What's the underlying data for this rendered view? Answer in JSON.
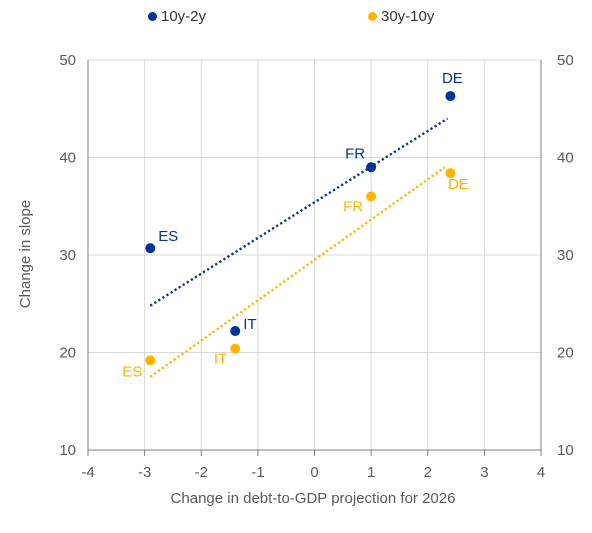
{
  "chart_data": {
    "type": "scatter",
    "xlabel": "Change in debt-to-GDP projection for 2026",
    "ylabel": "Change in slope",
    "xlim": [
      -4,
      4
    ],
    "ylim": [
      10,
      50
    ],
    "xticks": [
      -4,
      -3,
      -2,
      -1,
      0,
      1,
      2,
      3,
      4
    ],
    "yticks": [
      10,
      20,
      30,
      40,
      50
    ],
    "secondary_y_axis": true,
    "grid": "horizontal and vertical",
    "legend_position": "top",
    "series": [
      {
        "name": "10y-2y",
        "color": "#003299",
        "points": [
          {
            "label": "ES",
            "x": -2.9,
            "y": 30.7
          },
          {
            "label": "IT",
            "x": -1.4,
            "y": 22.2
          },
          {
            "label": "FR",
            "x": 1.0,
            "y": 39.0
          },
          {
            "label": "DE",
            "x": 2.4,
            "y": 46.3
          }
        ],
        "trendline": {
          "x": [
            -2.9,
            2.35
          ],
          "y": [
            24.8,
            44.0
          ]
        }
      },
      {
        "name": "30y-10y",
        "color": "#FFB400",
        "points": [
          {
            "label": "ES",
            "x": -2.9,
            "y": 19.2
          },
          {
            "label": "IT",
            "x": -1.4,
            "y": 20.4
          },
          {
            "label": "FR",
            "x": 1.0,
            "y": 36.0
          },
          {
            "label": "DE",
            "x": 2.4,
            "y": 38.4
          }
        ],
        "trendline": {
          "x": [
            -2.9,
            2.3
          ],
          "y": [
            17.5,
            39.0
          ]
        }
      }
    ]
  }
}
